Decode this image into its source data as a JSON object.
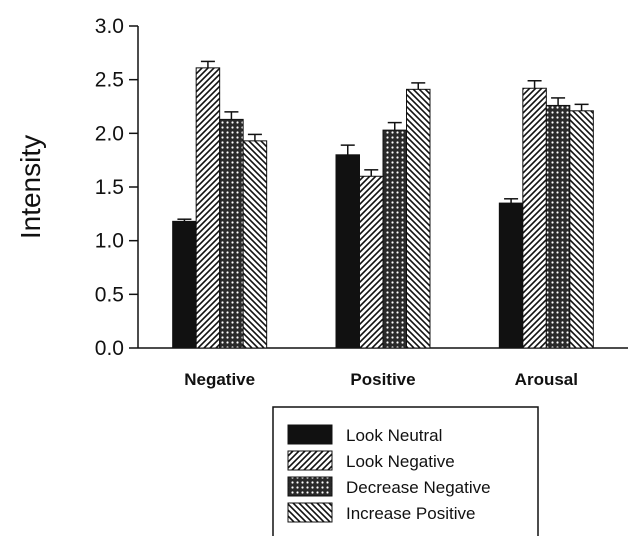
{
  "chart_data": {
    "type": "bar",
    "title": "",
    "xlabel": "",
    "ylabel": "Intensity",
    "ylim": [
      0,
      3
    ],
    "yticks": [
      "0.0",
      "0.5",
      "1.0",
      "1.5",
      "2.0",
      "2.5",
      "3.0"
    ],
    "grid": false,
    "legend_position": "bottom",
    "categories": [
      "Negative",
      "Positive",
      "Arousal"
    ],
    "series": [
      {
        "name": "Look Neutral",
        "pattern": "solid",
        "color": "#111111",
        "values": [
          1.18,
          1.8,
          1.35
        ],
        "errors": [
          0.02,
          0.09,
          0.04
        ]
      },
      {
        "name": "Look Negative",
        "pattern": "diagonal-forward",
        "color": "#111111",
        "values": [
          2.61,
          1.6,
          2.42
        ],
        "errors": [
          0.06,
          0.06,
          0.07
        ]
      },
      {
        "name": "Decrease Negative",
        "pattern": "crosshatch",
        "color": "#111111",
        "values": [
          2.13,
          2.03,
          2.26
        ],
        "errors": [
          0.07,
          0.07,
          0.07
        ]
      },
      {
        "name": "Increase Positive",
        "pattern": "diagonal-backward",
        "color": "#111111",
        "values": [
          1.93,
          2.41,
          2.21
        ],
        "errors": [
          0.06,
          0.06,
          0.06
        ]
      }
    ]
  }
}
